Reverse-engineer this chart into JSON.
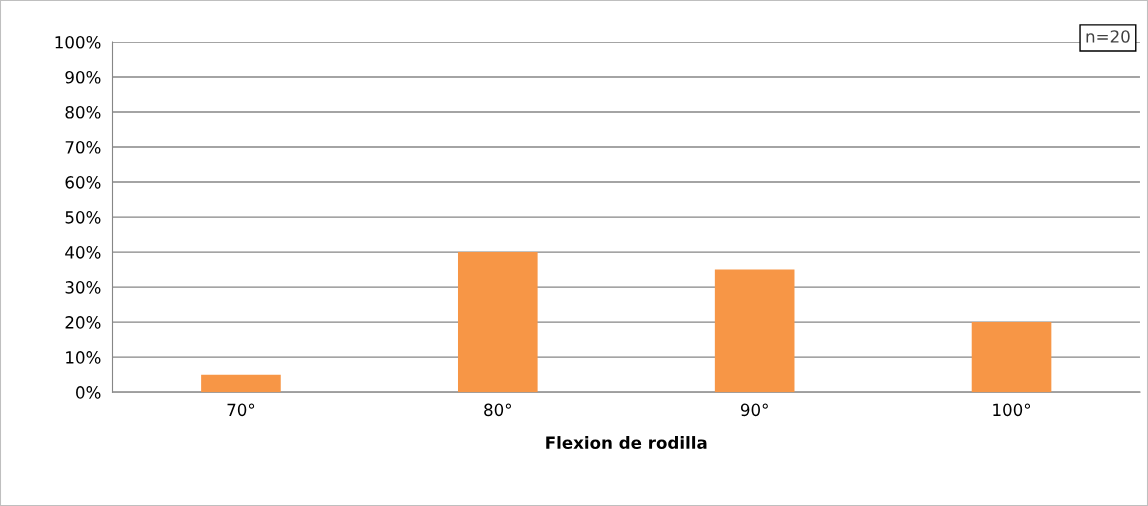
{
  "chart_data": {
    "type": "bar",
    "xlabel": "Flexion de rodilla",
    "categories": [
      "70°",
      "80°",
      "90°",
      "100°"
    ],
    "values": [
      5,
      40,
      35,
      20
    ],
    "color": "#f79646",
    "ylim": [
      0,
      100
    ],
    "yticks": [
      {
        "value": 0,
        "label": "0%"
      },
      {
        "value": 10,
        "label": "10%"
      },
      {
        "value": 20,
        "label": "20%"
      },
      {
        "value": 30,
        "label": "30%"
      },
      {
        "value": 40,
        "label": "40%"
      },
      {
        "value": 50,
        "label": "50%"
      },
      {
        "value": 60,
        "label": "60%"
      },
      {
        "value": 70,
        "label": "70%"
      },
      {
        "value": 80,
        "label": "80%"
      },
      {
        "value": 90,
        "label": "90%"
      },
      {
        "value": 100,
        "label": "100%"
      }
    ],
    "grid": "y",
    "legend": false,
    "annotations": [
      "n=20"
    ]
  }
}
